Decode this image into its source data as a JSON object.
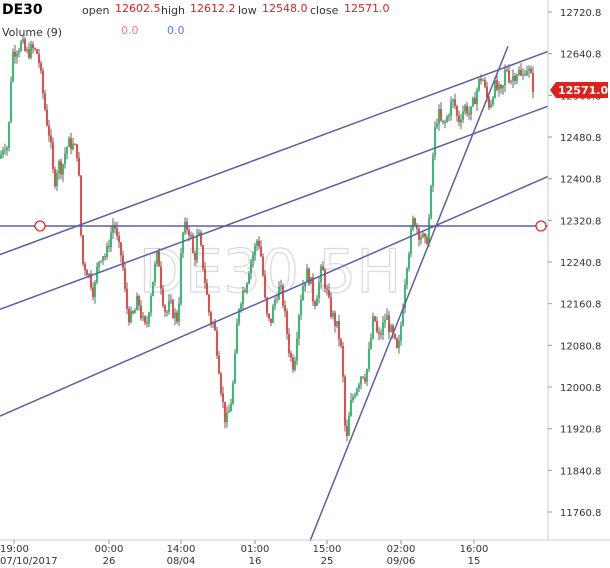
{
  "header": {
    "symbol": "DE30",
    "open_label": "open",
    "open_value": "12602.5",
    "high_label": "high",
    "high_value": "12612.2",
    "low_label": "low",
    "low_value": "12548.0",
    "close_label": "close",
    "close_value": "12571.0",
    "volume_label": "Volume (9)",
    "volume_a": "0.0",
    "volume_b": "0.0"
  },
  "colors": {
    "up": "#00b050",
    "down": "#e0201b",
    "trendline": "#5b5ea6",
    "axis_text": "#333333",
    "price_tag": "#e0201b",
    "watermark": "#d9d9d9"
  },
  "chart_data": {
    "type": "candlestick",
    "watermark": "DE30.5H",
    "current_price": "12571.0",
    "ylim": [
      11680,
      12760
    ],
    "y_ticks": [
      "12720.8",
      "12640.8",
      "12560.8",
      "12480.8",
      "12400.8",
      "12320.8",
      "12240.8",
      "12160.8",
      "12080.8",
      "12000.8",
      "11920.8",
      "11840.8",
      "11760.8"
    ],
    "x_ticks": [
      {
        "time": "19:00",
        "date": "07/10/2017"
      },
      {
        "time": "00:00",
        "date": "26"
      },
      {
        "time": "14:00",
        "date": "08/04"
      },
      {
        "time": "01:00",
        "date": "16"
      },
      {
        "time": "15:00",
        "date": "25"
      },
      {
        "time": "02:00",
        "date": "09/06"
      },
      {
        "time": "16:00",
        "date": "15"
      }
    ],
    "horizontal_line": 12310,
    "close_path": [
      [
        0,
        12440
      ],
      [
        4,
        12470
      ],
      [
        8,
        12460
      ],
      [
        12,
        12640
      ],
      [
        16,
        12650
      ],
      [
        22,
        12660
      ],
      [
        26,
        12640
      ],
      [
        32,
        12650
      ],
      [
        38,
        12640
      ],
      [
        42,
        12580
      ],
      [
        46,
        12520
      ],
      [
        50,
        12480
      ],
      [
        54,
        12390
      ],
      [
        58,
        12430
      ],
      [
        62,
        12420
      ],
      [
        66,
        12460
      ],
      [
        70,
        12470
      ],
      [
        74,
        12460
      ],
      [
        78,
        12450
      ],
      [
        82,
        12240
      ],
      [
        86,
        12230
      ],
      [
        90,
        12210
      ],
      [
        94,
        12180
      ],
      [
        98,
        12240
      ],
      [
        102,
        12260
      ],
      [
        106,
        12250
      ],
      [
        110,
        12290
      ],
      [
        114,
        12320
      ],
      [
        118,
        12270
      ],
      [
        122,
        12250
      ],
      [
        126,
        12160
      ],
      [
        130,
        12130
      ],
      [
        134,
        12140
      ],
      [
        138,
        12170
      ],
      [
        142,
        12130
      ],
      [
        146,
        12110
      ],
      [
        150,
        12170
      ],
      [
        154,
        12220
      ],
      [
        158,
        12260
      ],
      [
        162,
        12180
      ],
      [
        166,
        12140
      ],
      [
        170,
        12160
      ],
      [
        174,
        12140
      ],
      [
        178,
        12130
      ],
      [
        182,
        12290
      ],
      [
        186,
        12310
      ],
      [
        190,
        12300
      ],
      [
        194,
        12240
      ],
      [
        198,
        12300
      ],
      [
        202,
        12250
      ],
      [
        206,
        12190
      ],
      [
        210,
        12130
      ],
      [
        214,
        12120
      ],
      [
        218,
        12060
      ],
      [
        222,
        11980
      ],
      [
        226,
        11930
      ],
      [
        230,
        11960
      ],
      [
        234,
        12020
      ],
      [
        238,
        12150
      ],
      [
        242,
        12180
      ],
      [
        246,
        12200
      ],
      [
        250,
        12240
      ],
      [
        254,
        12260
      ],
      [
        258,
        12290
      ],
      [
        262,
        12240
      ],
      [
        266,
        12140
      ],
      [
        270,
        12120
      ],
      [
        274,
        12160
      ],
      [
        278,
        12190
      ],
      [
        282,
        12180
      ],
      [
        286,
        12120
      ],
      [
        290,
        12060
      ],
      [
        294,
        12040
      ],
      [
        298,
        12130
      ],
      [
        302,
        12190
      ],
      [
        306,
        12220
      ],
      [
        310,
        12210
      ],
      [
        314,
        12160
      ],
      [
        318,
        12190
      ],
      [
        322,
        12230
      ],
      [
        326,
        12190
      ],
      [
        330,
        12150
      ],
      [
        334,
        12130
      ],
      [
        338,
        12110
      ],
      [
        342,
        12060
      ],
      [
        346,
        11880
      ],
      [
        350,
        11960
      ],
      [
        354,
        11990
      ],
      [
        358,
        12010
      ],
      [
        362,
        12030
      ],
      [
        366,
        12020
      ],
      [
        370,
        12080
      ],
      [
        374,
        12140
      ],
      [
        378,
        12090
      ],
      [
        382,
        12110
      ],
      [
        386,
        12140
      ],
      [
        390,
        12110
      ],
      [
        394,
        12090
      ],
      [
        398,
        12060
      ],
      [
        402,
        12140
      ],
      [
        406,
        12230
      ],
      [
        410,
        12280
      ],
      [
        414,
        12330
      ],
      [
        418,
        12300
      ],
      [
        422,
        12290
      ],
      [
        426,
        12270
      ],
      [
        430,
        12340
      ],
      [
        434,
        12480
      ],
      [
        438,
        12530
      ],
      [
        442,
        12500
      ],
      [
        446,
        12510
      ],
      [
        450,
        12540
      ],
      [
        454,
        12550
      ],
      [
        458,
        12510
      ],
      [
        462,
        12530
      ],
      [
        466,
        12540
      ],
      [
        470,
        12520
      ],
      [
        474,
        12550
      ],
      [
        478,
        12580
      ],
      [
        482,
        12600
      ],
      [
        486,
        12560
      ],
      [
        490,
        12540
      ],
      [
        494,
        12580
      ],
      [
        498,
        12570
      ],
      [
        502,
        12560
      ],
      [
        506,
        12620
      ],
      [
        510,
        12590
      ],
      [
        514,
        12600
      ],
      [
        518,
        12610
      ],
      [
        522,
        12590
      ],
      [
        526,
        12620
      ],
      [
        530,
        12600
      ],
      [
        534,
        12571
      ]
    ],
    "trendlines": [
      {
        "from": [
          0,
          12255
        ],
        "to": [
          548,
          12645
        ]
      },
      {
        "from": [
          0,
          12150
        ],
        "to": [
          548,
          12540
        ]
      },
      {
        "from": [
          0,
          11945
        ],
        "to": [
          548,
          12405
        ]
      },
      {
        "from": [
          310,
          11705
        ],
        "to": [
          508,
          12655
        ]
      }
    ]
  }
}
